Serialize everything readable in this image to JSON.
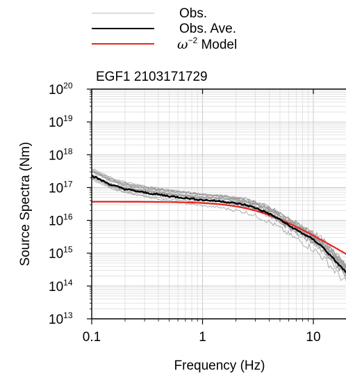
{
  "chart_data": {
    "type": "line",
    "title": "EGF1 2103171729",
    "xlabel": "Frequency (Hz)",
    "ylabel": "Source Spectra (Nm)",
    "xscale": "log",
    "yscale": "log",
    "xlim": [
      0.1,
      20
    ],
    "ylim": [
      10000000000000.0,
      1e+20
    ],
    "grid": true,
    "legend_position": "top",
    "x_ticks": [
      {
        "value": 0.1,
        "label": "0.1"
      },
      {
        "value": 1,
        "label": "1"
      },
      {
        "value": 10,
        "label": "10"
      }
    ],
    "y_ticks": [
      {
        "exp": 13,
        "base": "10",
        "sup": "13"
      },
      {
        "exp": 14,
        "base": "10",
        "sup": "14"
      },
      {
        "exp": 15,
        "base": "10",
        "sup": "15"
      },
      {
        "exp": 16,
        "base": "10",
        "sup": "16"
      },
      {
        "exp": 17,
        "base": "10",
        "sup": "17"
      },
      {
        "exp": 18,
        "base": "10",
        "sup": "18"
      },
      {
        "exp": 19,
        "base": "10",
        "sup": "19"
      },
      {
        "exp": 20,
        "base": "10",
        "sup": "20"
      }
    ],
    "legend": [
      {
        "label": "Obs.",
        "color": "#c8c8c8"
      },
      {
        "label": "Obs. Ave.",
        "color": "#000000"
      },
      {
        "label_symbol": "ω",
        "label_sup": "−2",
        "label_rest": " Model",
        "color": "#e8251f"
      }
    ],
    "series": [
      {
        "name": "Obs. Ave.",
        "color": "#000000",
        "x": [
          0.1,
          0.15,
          0.2,
          0.3,
          0.5,
          0.7,
          1.0,
          1.5,
          2.0,
          2.5,
          3.0,
          4.0,
          5.0,
          6.0,
          8.0,
          10,
          12,
          15,
          20
        ],
        "y": [
          2.3e+17,
          1.2e+17,
          9e+16,
          7e+16,
          5.5e+16,
          4.8e+16,
          4.2e+16,
          3.8e+16,
          3.3e+16,
          2.9e+16,
          2.4e+16,
          1.6e+16,
          1.05e+16,
          7000000000000000.0,
          4000000000000000.0,
          2600000000000000.0,
          1600000000000000.0,
          700000000000000.0,
          250000000000000.0
        ]
      },
      {
        "name": "ω⁻² Model",
        "color": "#e8251f",
        "model": "omega_square",
        "omega0": 3.7e+16,
        "fc": 3.2
      }
    ],
    "observation_band": {
      "name": "Obs.",
      "color": "#9a9a9a",
      "count": 14,
      "center": "Obs. Ave."
    }
  }
}
